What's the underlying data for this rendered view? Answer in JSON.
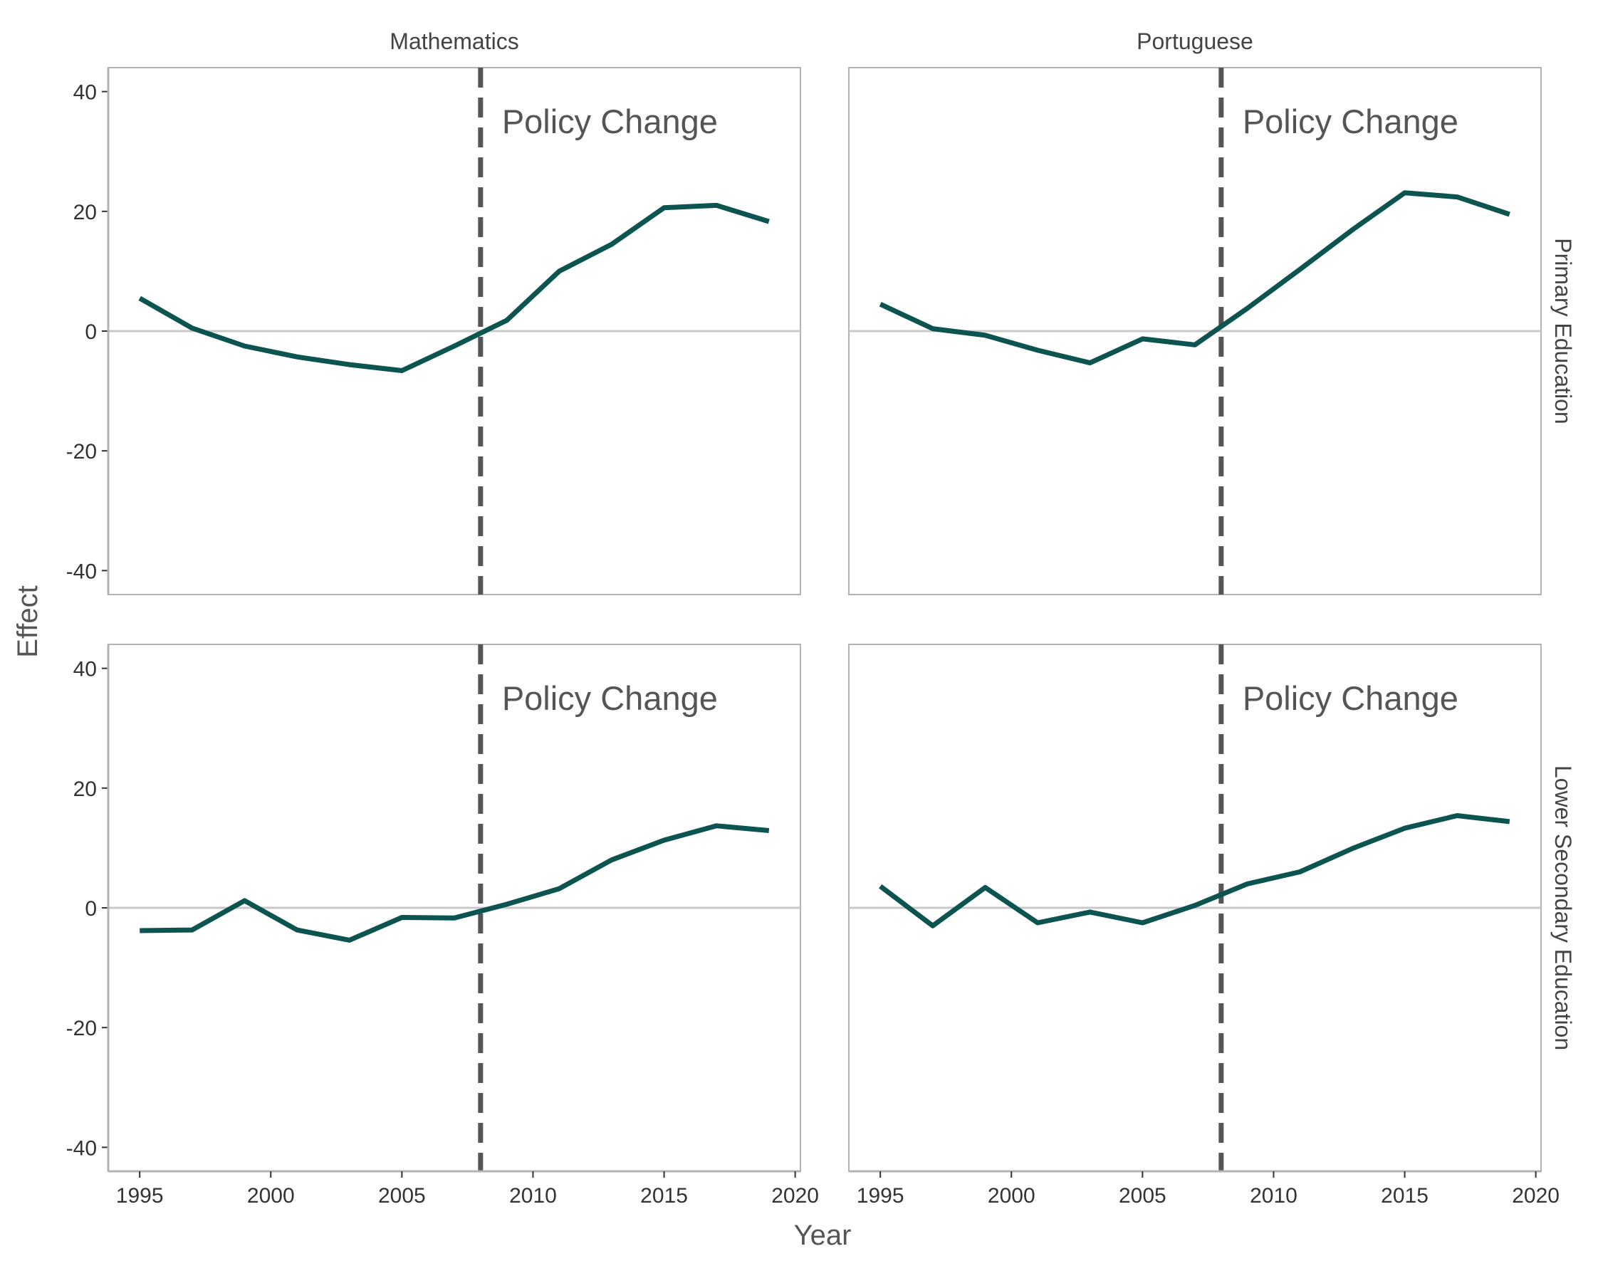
{
  "chart_data": {
    "type": "line",
    "layout": "facet_grid",
    "xlabel": "Year",
    "ylabel": "Effect",
    "xlim": [
      1993.8,
      2020.2
    ],
    "ylim": [
      -44,
      44
    ],
    "xticks": [
      1995,
      2000,
      2005,
      2010,
      2015,
      2020
    ],
    "yticks": [
      -40,
      -20,
      0,
      20,
      40
    ],
    "columns": [
      "Mathematics",
      "Portuguese"
    ],
    "rows": [
      "Primary Education",
      "Lower Secondary Education"
    ],
    "reference_hline": 0,
    "reference_vline": 2008,
    "annotation": "Policy Change",
    "line_color": "#0c5450",
    "panels": [
      {
        "column": "Mathematics",
        "row": "Primary Education",
        "x": [
          1995,
          1997,
          1999,
          2001,
          2003,
          2005,
          2007,
          2009,
          2011,
          2013,
          2015,
          2017,
          2019
        ],
        "y": [
          5.5,
          0.5,
          -2.5,
          -4.3,
          -5.6,
          -6.6,
          -2.5,
          1.8,
          10,
          14.5,
          20.6,
          21,
          18.3
        ]
      },
      {
        "column": "Portuguese",
        "row": "Primary Education",
        "x": [
          1995,
          1997,
          1999,
          2001,
          2003,
          2005,
          2007,
          2009,
          2011,
          2013,
          2015,
          2017,
          2019
        ],
        "y": [
          4.5,
          0.4,
          -0.7,
          -3.2,
          -5.3,
          -1.3,
          -2.3,
          3.8,
          10.3,
          16.9,
          23.1,
          22.4,
          19.5
        ]
      },
      {
        "column": "Mathematics",
        "row": "Lower Secondary Education",
        "x": [
          1995,
          1997,
          1999,
          2001,
          2003,
          2005,
          2007,
          2009,
          2011,
          2013,
          2015,
          2017,
          2019
        ],
        "y": [
          -3.8,
          -3.7,
          1.2,
          -3.7,
          -5.4,
          -1.6,
          -1.7,
          0.6,
          3.2,
          8,
          11.3,
          13.7,
          12.9
        ]
      },
      {
        "column": "Portuguese",
        "row": "Lower Secondary Education",
        "x": [
          1995,
          1997,
          1999,
          2001,
          2003,
          2005,
          2007,
          2009,
          2011,
          2013,
          2015,
          2017,
          2019
        ],
        "y": [
          3.6,
          -3,
          3.4,
          -2.5,
          -0.7,
          -2.5,
          0.4,
          4,
          6,
          9.9,
          13.3,
          15.4,
          14.4
        ]
      }
    ]
  }
}
